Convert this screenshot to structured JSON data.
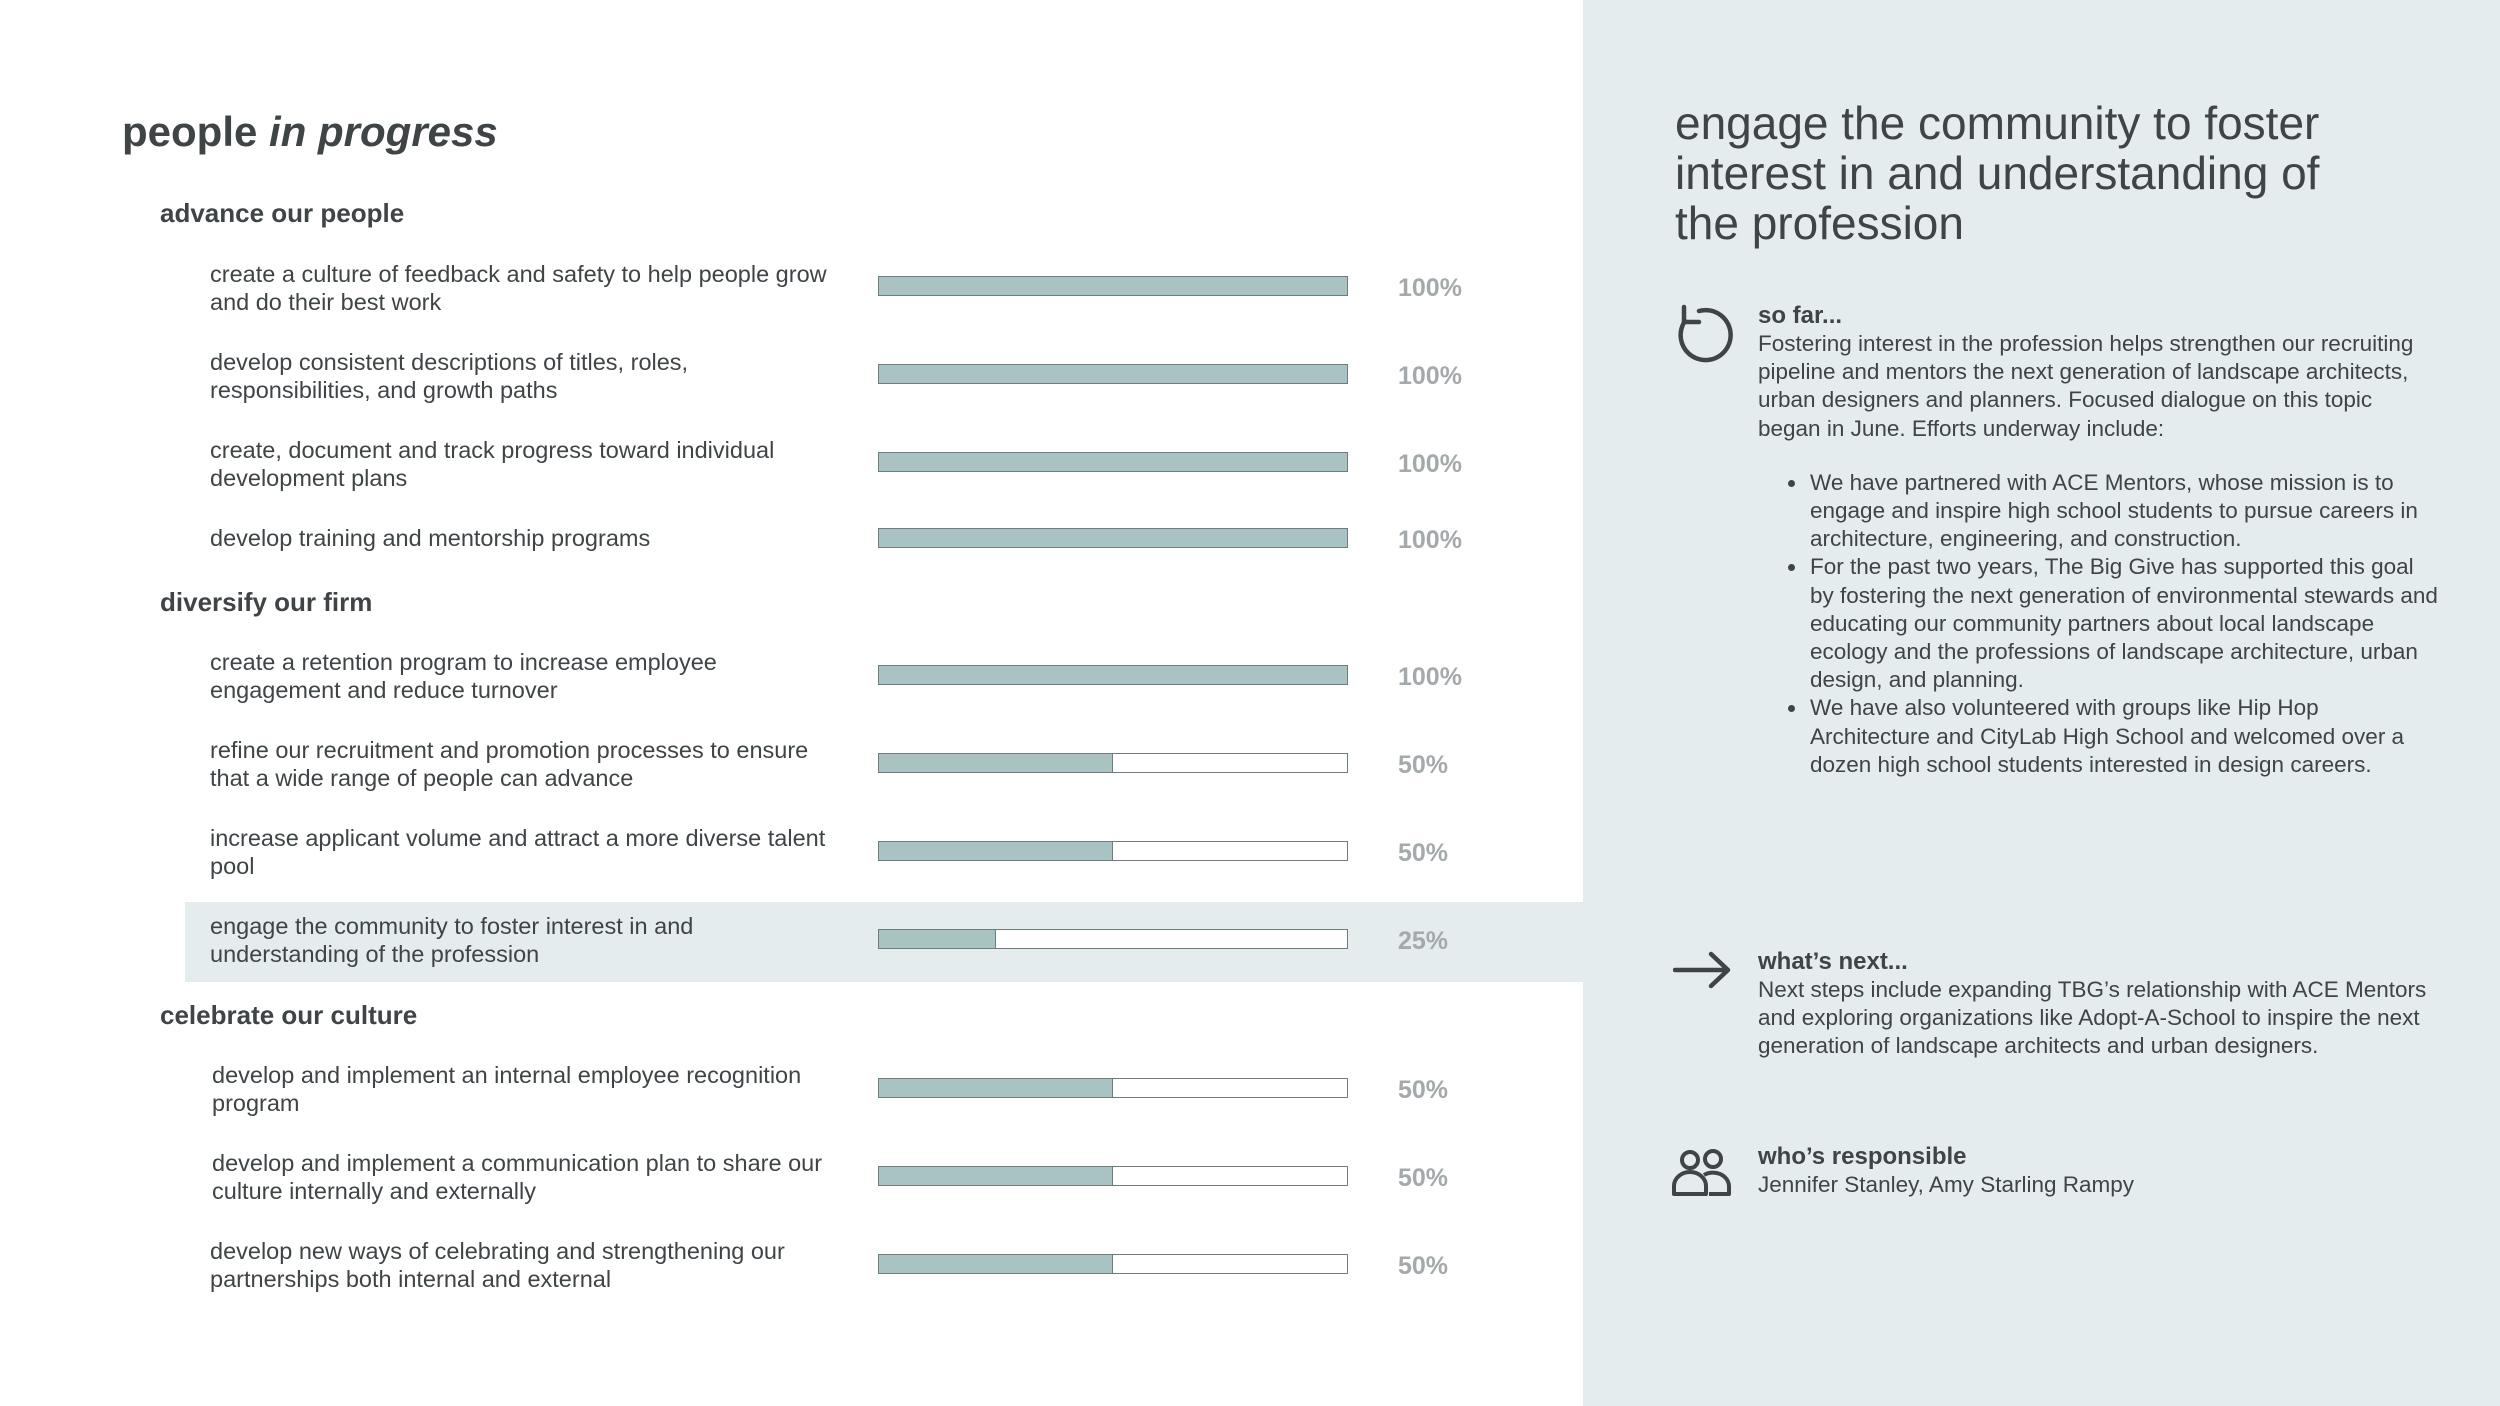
{
  "page": {
    "title_main": "people",
    "title_em": "in progress"
  },
  "sections": [
    {
      "heading": "advance our people",
      "items": [
        {
          "label": "create a culture of feedback and safety to help people grow and do their best work",
          "progress": 1.0,
          "pct": "100%"
        },
        {
          "label": "develop consistent descriptions of titles, roles, responsibilities, and growth paths",
          "progress": 1.0,
          "pct": "100%"
        },
        {
          "label": "create, document and track progress toward individual development plans",
          "progress": 1.0,
          "pct": "100%"
        },
        {
          "label": "develop training and mentorship programs",
          "progress": 1.0,
          "pct": "100%"
        }
      ]
    },
    {
      "heading": "diversify our firm",
      "items": [
        {
          "label": "create a retention program to increase employee engagement and reduce turnover",
          "progress": 1.0,
          "pct": "100%"
        },
        {
          "label": "refine our recruitment and promotion processes to ensure that a wide range of people can advance",
          "progress": 0.5,
          "pct": "50%"
        },
        {
          "label": "increase applicant volume and attract a more diverse talent pool",
          "progress": 0.5,
          "pct": "50%"
        },
        {
          "label": "engage the community to foster interest in and understanding of the profession",
          "progress": 0.25,
          "pct": "25%"
        }
      ]
    },
    {
      "heading": "celebrate our culture",
      "items": [
        {
          "label": "develop and implement an internal employee recognition program",
          "progress": 0.5,
          "pct": "50%"
        },
        {
          "label": "develop and implement a communication plan to share our culture internally and externally",
          "progress": 0.5,
          "pct": "50%"
        },
        {
          "label": "develop new ways of celebrating and strengthening our partnerships both internal and external",
          "progress": 0.5,
          "pct": "50%"
        }
      ]
    }
  ],
  "detail": {
    "title": "engage the community to foster interest in and understanding of the profession",
    "so_far": {
      "heading": "so far...",
      "text": "Fostering interest in the profession helps strengthen our recruiting pipeline and mentors the next generation of landscape architects, urban designers and planners. Focused dialogue on this topic began in June. Efforts underway include:",
      "bullets": [
        "We have partnered with ACE Mentors, whose mission is to engage and inspire high school students to pursue careers in architecture, engineering, and construction.",
        "For the past two years, The Big Give has supported this goal by fostering the next generation of environmental stewards and educating our community partners about local landscape ecology and the professions of landscape architecture, urban design, and planning.",
        "We have also volunteered with groups like Hip Hop Architecture and CityLab High School and welcomed over a dozen high school students interested in design careers."
      ]
    },
    "whats_next": {
      "heading": "what’s next...",
      "text": "Next steps include expanding TBG’s relationship with ACE Mentors and exploring organizations like Adopt-A-School to inspire the next generation of landscape architects and urban designers."
    },
    "responsible": {
      "heading": "who’s responsible",
      "text": "Jennifer Stanley, Amy Starling Rampy"
    }
  },
  "colors": {
    "bar_fill": "#a9c3c3",
    "panel_bg": "#e4eced",
    "pct_text": "#a4a9ab"
  },
  "icons": [
    "refresh-icon",
    "arrow-right-icon",
    "people-icon"
  ]
}
